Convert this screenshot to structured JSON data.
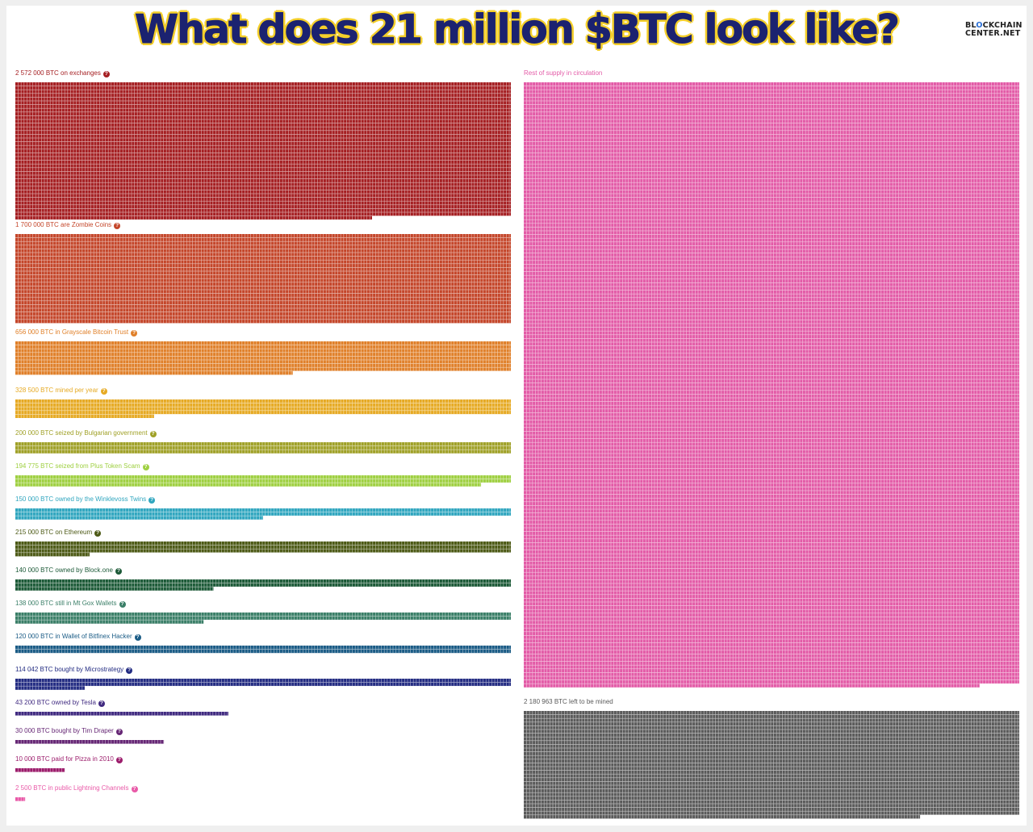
{
  "header": {
    "title": "What does 21 million $BTC look like?",
    "brand_line1_pre": "BL",
    "brand_line1_mark": "O",
    "brand_line1_post": "CKCHAIN",
    "brand_line2": "CENTER.NET",
    "brand_color": "#1b2270",
    "brand_accent": "#f4cf2a"
  },
  "chart_data": {
    "type": "waffle",
    "title": "What does 21 million $BTC look like?",
    "total_btc": 21000000,
    "unit_note": "each small square represents a fixed amount of BTC",
    "groups": [
      {
        "label": "2 572 000 BTC on exchanges",
        "btc": 2572000,
        "color": "#a51f22"
      },
      {
        "label": "1 700 000 BTC are Zombie Coins",
        "btc": 1700000,
        "color": "#c4462a"
      },
      {
        "label": "656 000 BTC in Grayscale Bitcoin Trust",
        "btc": 656000,
        "color": "#e0802a"
      },
      {
        "label": "328 500 BTC mined per year",
        "btc": 328500,
        "color": "#e6aa24"
      },
      {
        "label": "200 000 BTC seized by Bulgarian government",
        "btc": 200000,
        "color": "#a0a128"
      },
      {
        "label": "194 775 BTC seized from Plus Token Scam",
        "btc": 194775,
        "color": "#9fd042"
      },
      {
        "label": "150 000 BTC owned by the Winklevoss Twins",
        "btc": 150000,
        "color": "#30a6bf"
      },
      {
        "label": "215 000 BTC on Ethereum",
        "btc": 215000,
        "color": "#4d5a16"
      },
      {
        "label": "140 000 BTC owned by Block.one",
        "btc": 140000,
        "color": "#1d5a38"
      },
      {
        "label": "138 000 BTC still in Mt Gox Wallets",
        "btc": 138000,
        "color": "#3b7f68"
      },
      {
        "label": "120 000 BTC in Wallet of Bitfinex Hacker",
        "btc": 120000,
        "color": "#1b5c86"
      },
      {
        "label": "114 042 BTC bought by Microstrategy",
        "btc": 114042,
        "color": "#232c82"
      },
      {
        "label": "43 200 BTC owned by Tesla",
        "btc": 43200,
        "color": "#402a80"
      },
      {
        "label": "30 000 BTC bought by Tim Draper",
        "btc": 30000,
        "color": "#662775"
      },
      {
        "label": "10 000 BTC paid for Pizza in 2010",
        "btc": 10000,
        "color": "#9c1d6c"
      },
      {
        "label": "2 500 BTC in public Lightning Channels",
        "btc": 2500,
        "color": "#e95aa8"
      },
      {
        "label": "Rest of supply in circulation",
        "btc": null,
        "color": "#e35ba7"
      },
      {
        "label": "2 180 963 BTC left to be mined",
        "btc": 2180963,
        "color": "#5a5a5a"
      }
    ]
  }
}
